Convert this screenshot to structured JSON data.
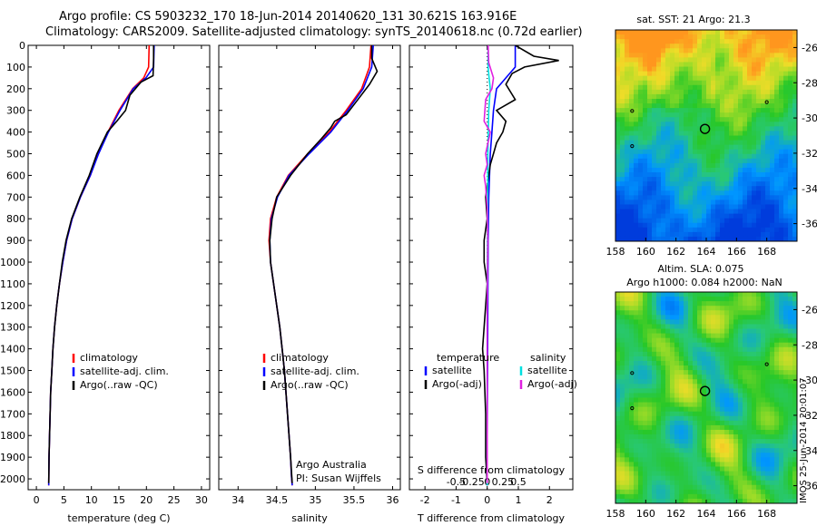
{
  "title": {
    "line1": "Argo profile: CS 5903232_170 18-Jun-2014 20140620_131 30.621S 163.916E",
    "line2": "Climatology: CARS2009. Satellite-adjusted climatology: synTS_20140618.nc (0.72d earlier)"
  },
  "stamp": "IMOS 25-Jun-2014 20:01:07",
  "colors": {
    "climatology": "#ff0000",
    "satellite": "#0000ff",
    "argo": "#000000",
    "salt_sat": "#00e0e0",
    "salt_argo": "#e020e0"
  },
  "chart_data": [
    {
      "type": "line",
      "id": "temperature",
      "xlabel": "temperature (deg C)",
      "ylabel": "",
      "xlim": [
        -1.5,
        31.5
      ],
      "ylim": [
        0,
        2050
      ],
      "y_reversed": true,
      "xticks": [
        0,
        5,
        10,
        15,
        20,
        25,
        30
      ],
      "yticks": [
        0,
        100,
        200,
        300,
        400,
        500,
        600,
        700,
        800,
        900,
        1000,
        1100,
        1200,
        1300,
        1400,
        1500,
        1600,
        1700,
        1800,
        1900,
        2000
      ],
      "legend": [
        "climatology",
        "satellite-adj. clim.",
        "Argo(..raw -QC)"
      ],
      "series": [
        {
          "name": "climatology",
          "color": "#ff0000",
          "x": [
            20.5,
            20.4,
            19.5,
            17.5,
            15.0,
            13.0,
            11.2,
            9.8,
            8.0,
            6.5,
            5.5,
            4.8,
            4.2,
            3.7,
            3.3,
            3.0,
            2.8,
            2.6,
            2.5,
            2.4,
            2.3,
            2.25
          ],
          "y": [
            0,
            100,
            150,
            200,
            300,
            400,
            500,
            600,
            700,
            800,
            900,
            1000,
            1100,
            1200,
            1300,
            1400,
            1500,
            1600,
            1700,
            1800,
            1900,
            2030
          ]
        },
        {
          "name": "satellite-adj. clim.",
          "color": "#0000ff",
          "x": [
            21.4,
            21.3,
            19.9,
            17.6,
            15.2,
            13.1,
            11.3,
            9.8,
            8.0,
            6.5,
            5.5,
            4.8,
            4.2,
            3.7,
            3.3,
            3.0,
            2.8,
            2.6,
            2.5,
            2.4,
            2.3,
            2.25
          ],
          "y": [
            0,
            100,
            150,
            200,
            300,
            400,
            500,
            600,
            700,
            800,
            900,
            1000,
            1100,
            1200,
            1300,
            1400,
            1500,
            1600,
            1700,
            1800,
            1900,
            2030
          ]
        },
        {
          "name": "Argo(..raw -QC)",
          "color": "#000000",
          "x": [
            21.3,
            21.3,
            21.2,
            19.0,
            17.0,
            16.2,
            14.6,
            12.9,
            11.0,
            9.6,
            7.9,
            6.4,
            5.4,
            4.7,
            4.2,
            3.7,
            3.3,
            3.0,
            2.8,
            2.6,
            2.5,
            2.4,
            2.3,
            2.25
          ],
          "y": [
            0,
            60,
            140,
            170,
            230,
            300,
            350,
            400,
            500,
            600,
            700,
            800,
            900,
            1000,
            1100,
            1200,
            1300,
            1400,
            1500,
            1600,
            1700,
            1800,
            1900,
            2020
          ]
        }
      ]
    },
    {
      "type": "line",
      "id": "salinity",
      "xlabel": "salinity",
      "xlim": [
        33.75,
        36.1
      ],
      "ylim": [
        0,
        2050
      ],
      "y_reversed": true,
      "xticks": [
        34,
        34.5,
        35,
        35.5,
        36
      ],
      "legend": [
        "climatology",
        "satellite-adj. clim.",
        "Argo(..raw -QC)"
      ],
      "annotation": [
        "Argo Australia",
        "PI: Susan Wijffels"
      ],
      "series": [
        {
          "name": "climatology",
          "color": "#ff0000",
          "x": [
            35.72,
            35.7,
            35.6,
            35.4,
            35.18,
            34.9,
            34.65,
            34.5,
            34.42,
            34.4,
            34.42,
            34.46,
            34.5,
            34.54,
            34.57,
            34.6,
            34.62,
            34.64,
            34.66,
            34.68,
            34.69,
            34.7
          ],
          "y": [
            0,
            100,
            200,
            300,
            400,
            500,
            600,
            700,
            800,
            900,
            1000,
            1100,
            1200,
            1300,
            1400,
            1500,
            1600,
            1700,
            1800,
            1900,
            1980,
            2030
          ]
        },
        {
          "name": "satellite-adj. clim.",
          "color": "#0000ff",
          "x": [
            35.75,
            35.73,
            35.62,
            35.42,
            35.2,
            34.92,
            34.66,
            34.51,
            34.43,
            34.41,
            34.42,
            34.46,
            34.5,
            34.54,
            34.57,
            34.6,
            34.62,
            34.64,
            34.66,
            34.68,
            34.69,
            34.7
          ],
          "y": [
            0,
            100,
            200,
            300,
            400,
            500,
            600,
            700,
            800,
            900,
            1000,
            1100,
            1200,
            1300,
            1400,
            1500,
            1600,
            1700,
            1800,
            1900,
            1980,
            2030
          ]
        },
        {
          "name": "Argo(..raw -QC)",
          "color": "#000000",
          "x": [
            35.73,
            35.73,
            35.8,
            35.7,
            35.55,
            35.4,
            35.25,
            35.2,
            35.08,
            34.9,
            34.68,
            34.5,
            34.44,
            34.41,
            34.42,
            34.46,
            34.5,
            34.54,
            34.57,
            34.6,
            34.62,
            34.64,
            34.66,
            34.68,
            34.7
          ],
          "y": [
            0,
            60,
            120,
            180,
            250,
            320,
            350,
            380,
            430,
            500,
            600,
            700,
            800,
            900,
            1000,
            1100,
            1200,
            1300,
            1400,
            1500,
            1600,
            1700,
            1800,
            1900,
            2020
          ]
        }
      ]
    },
    {
      "type": "line",
      "id": "difference",
      "xlabel": "T difference from climatology",
      "xlabel_top": "S difference from climatology",
      "xlim": [
        -2.5,
        2.75
      ],
      "ylim": [
        0,
        2050
      ],
      "y_reversed": true,
      "xticks": [
        -2,
        -1,
        0,
        1,
        2
      ],
      "s_ticks": [
        "-0.5",
        "-0.25",
        "0",
        "0.25",
        "0.5"
      ],
      "legend_t_title": "temperature",
      "legend_s_title": "salinity",
      "legend": [
        "satellite",
        "Argo(-adj)",
        "satellite",
        "Argo(-adj)"
      ],
      "series": [
        {
          "name": "satellite",
          "group": "temperature",
          "color": "#0000ff",
          "x": [
            0.9,
            0.9,
            0.6,
            0.3,
            0.2,
            0.15,
            0.1,
            0.05,
            0.03,
            0.02,
            0.01,
            0.0,
            0.0
          ],
          "y": [
            0,
            100,
            150,
            200,
            300,
            400,
            500,
            700,
            900,
            1200,
            1500,
            1800,
            2030
          ]
        },
        {
          "name": "Argo(-adj)",
          "group": "temperature",
          "color": "#000000",
          "x": [
            0.9,
            1.5,
            2.3,
            1.2,
            0.8,
            0.6,
            0.9,
            0.3,
            0.6,
            0.5,
            0.3,
            0.2,
            0.1,
            0.05,
            -0.05,
            0.0,
            -0.1,
            -0.1,
            0.0,
            -0.05,
            -0.1,
            -0.15,
            -0.1,
            -0.05,
            -0.05,
            0.0
          ],
          "y": [
            0,
            50,
            70,
            100,
            130,
            180,
            250,
            300,
            350,
            400,
            450,
            500,
            550,
            600,
            700,
            800,
            900,
            1000,
            1100,
            1200,
            1300,
            1400,
            1500,
            1700,
            1900,
            2020
          ]
        },
        {
          "name": "satellite",
          "group": "salinity",
          "color": "#00e0e0",
          "x": [
            0.03,
            0.03,
            0.06,
            0.1,
            0.05,
            0.02,
            0.01,
            0.0,
            0.0,
            0.0
          ],
          "y": [
            0,
            100,
            150,
            200,
            300,
            500,
            800,
            1200,
            1600,
            2030
          ]
        },
        {
          "name": "Argo(-adj)",
          "group": "salinity",
          "color": "#e020e0",
          "x": [
            0.03,
            0.05,
            0.2,
            0.15,
            -0.05,
            -0.1,
            0.1,
            -0.05,
            0.0,
            -0.1,
            -0.05,
            0.0,
            0.02,
            0.0,
            0.0
          ],
          "y": [
            0,
            80,
            150,
            200,
            250,
            350,
            400,
            500,
            550,
            600,
            650,
            750,
            900,
            1200,
            2020
          ]
        }
      ]
    },
    {
      "type": "heatmap",
      "id": "sst_map",
      "title": "sat. SST: 21  Argo: 21.3",
      "xlim": [
        158,
        170
      ],
      "ylim": [
        -37,
        -25
      ],
      "xticks": [
        158,
        160,
        162,
        164,
        166,
        168
      ],
      "yticks": [
        -26,
        -28,
        -30,
        -32,
        -34,
        -36
      ],
      "float_position": [
        163.916,
        -30.621
      ]
    },
    {
      "type": "heatmap",
      "id": "sla_map",
      "title": "Altim. SLA: 0.075",
      "subtitle": "Argo h1000: 0.084 h2000: NaN",
      "xlim": [
        158,
        170
      ],
      "ylim": [
        -37,
        -25
      ],
      "xticks": [
        158,
        160,
        162,
        164,
        166,
        168
      ],
      "yticks": [
        -26,
        -28,
        -30,
        -32,
        -34,
        -36
      ],
      "float_position": [
        163.916,
        -30.621
      ]
    }
  ]
}
